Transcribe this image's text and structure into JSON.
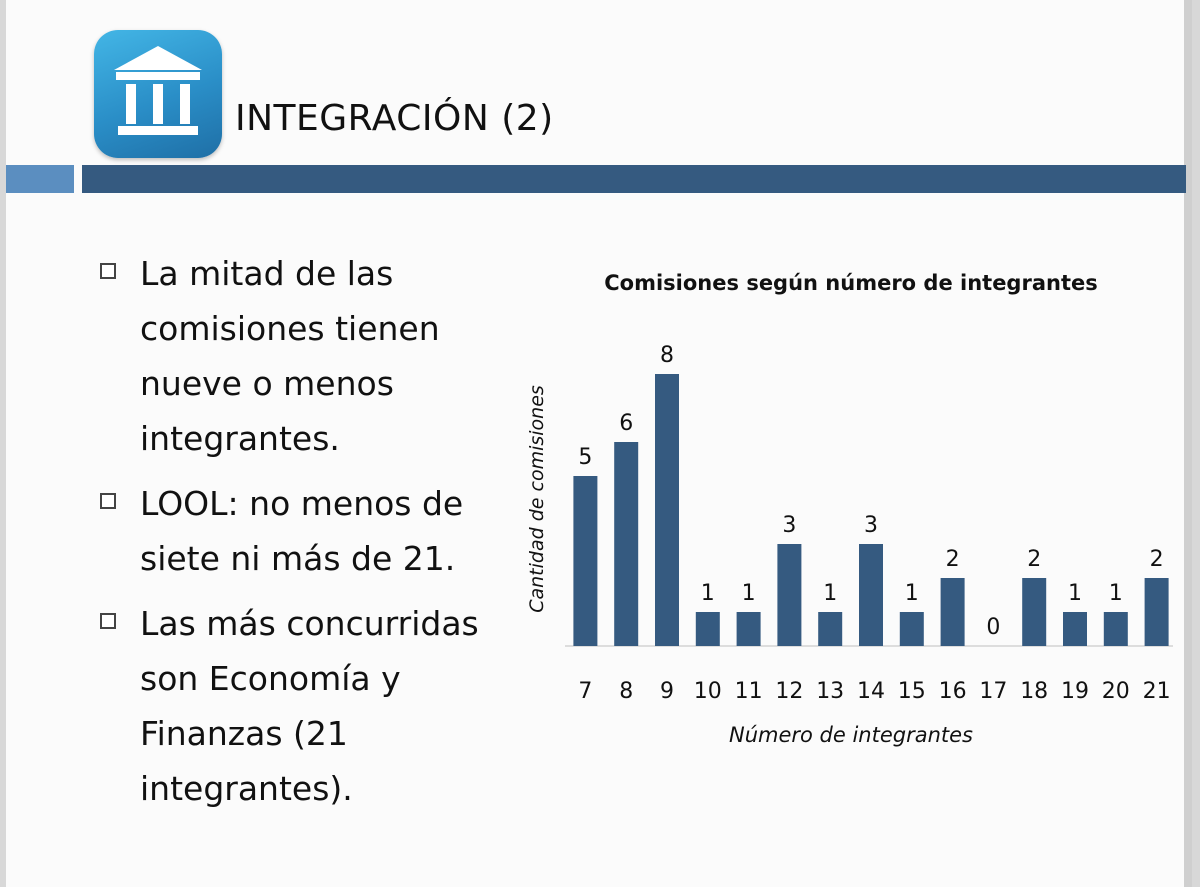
{
  "slide": {
    "title": "INTEGRACIÓN (2)",
    "icon": "bank-building-icon",
    "colors": {
      "header_bar_dark": "#355a80",
      "header_bar_light": "#5b8ec0",
      "icon_blue": "#2a8ec7"
    },
    "bullets": [
      {
        "text": "La mitad de las comisiones tienen nueve o menos integrantes."
      },
      {
        "text": "LOOL: no menos de siete ni más de 21."
      },
      {
        "text": "Las más concurridas son Economía y Finanzas (21 integrantes)."
      }
    ]
  },
  "chart_data": {
    "type": "bar",
    "title": "Comisiones según número de integrantes",
    "xlabel": "Número de integrantes",
    "ylabel": "Cantidad de comisiones",
    "categories": [
      "7",
      "8",
      "9",
      "10",
      "11",
      "12",
      "13",
      "14",
      "15",
      "16",
      "17",
      "18",
      "19",
      "20",
      "21"
    ],
    "values": [
      5,
      6,
      8,
      1,
      1,
      3,
      1,
      3,
      1,
      2,
      0,
      2,
      1,
      1,
      2
    ],
    "ylim": [
      0,
      9
    ],
    "grid": false,
    "bar_color": "#355a80",
    "data_labels": true
  }
}
